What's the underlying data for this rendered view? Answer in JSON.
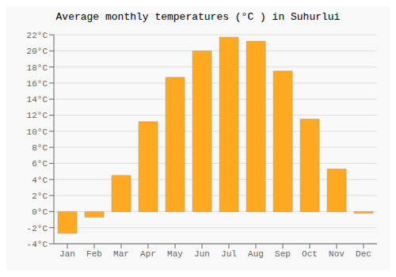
{
  "chart_data": {
    "type": "bar",
    "title": "Average monthly temperatures (°C ) in Suhurlui",
    "categories": [
      "Jan",
      "Feb",
      "Mar",
      "Apr",
      "May",
      "Jun",
      "Jul",
      "Aug",
      "Sep",
      "Oct",
      "Nov",
      "Dec"
    ],
    "values": [
      -2.7,
      -0.7,
      4.5,
      11.2,
      16.7,
      20.0,
      21.7,
      21.2,
      17.5,
      11.5,
      5.3,
      -0.2
    ],
    "color": "#FFA820",
    "ylim": [
      -4,
      22
    ],
    "yticks": [
      {
        "value": -4,
        "label": "-4°C"
      },
      {
        "value": -2,
        "label": "-2°C"
      },
      {
        "value": 0,
        "label": "0°C"
      },
      {
        "value": 2,
        "label": "2°C"
      },
      {
        "value": 4,
        "label": "4°C"
      },
      {
        "value": 6,
        "label": "6°C"
      },
      {
        "value": 8,
        "label": "8°C"
      },
      {
        "value": 10,
        "label": "10°C"
      },
      {
        "value": 12,
        "label": "12°C"
      },
      {
        "value": 14,
        "label": "14°C"
      },
      {
        "value": 16,
        "label": "16°C"
      },
      {
        "value": 18,
        "label": "18°C"
      },
      {
        "value": 20,
        "label": "20°C"
      },
      {
        "value": 22,
        "label": "22°C"
      }
    ],
    "grid": true
  }
}
